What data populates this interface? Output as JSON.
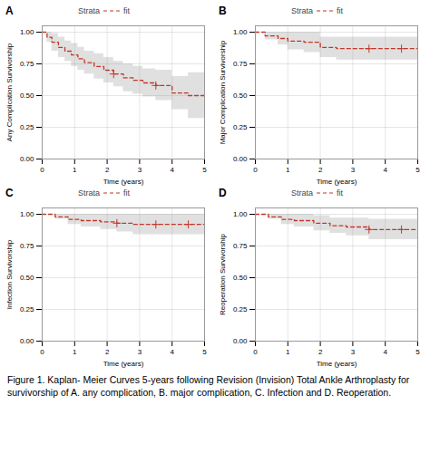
{
  "caption": "Figure 1. Kaplan- Meier Curves 5-years following Revision (Invision) Total Ankle Arthroplasty for survivorship of A. any complication, B. major complication, C. Infection and D. Reoperation.",
  "chart_data": [
    {
      "type": "line",
      "title": "A",
      "legend_title": "Strata",
      "xlabel": "Time (years)",
      "ylabel": "Any Complication Survivorship",
      "xlim": [
        0,
        5
      ],
      "ylim": [
        0.0,
        1.05
      ],
      "xticks": [
        0,
        1,
        2,
        3,
        4,
        5
      ],
      "yticks": [
        {
          "value": 0.0,
          "label": "0.00"
        },
        {
          "value": 0.25,
          "label": "0.25"
        },
        {
          "value": 0.5,
          "label": "0.50"
        },
        {
          "value": 0.75,
          "label": "0.75"
        },
        {
          "value": 1.0,
          "label": "1.00"
        }
      ],
      "grid": true,
      "x": [
        0,
        0.15,
        0.3,
        0.5,
        0.7,
        0.9,
        1.1,
        1.3,
        1.6,
        1.9,
        2.2,
        2.5,
        2.8,
        3.1,
        3.5,
        4.0,
        4.5,
        5.0
      ],
      "series": [
        {
          "name": "fit",
          "color": "#c0392b",
          "line_style": "dashed",
          "values": [
            1.0,
            0.96,
            0.92,
            0.88,
            0.85,
            0.82,
            0.79,
            0.76,
            0.73,
            0.7,
            0.67,
            0.64,
            0.62,
            0.6,
            0.58,
            0.52,
            0.5,
            0.5
          ],
          "ci_upper": [
            1.0,
            1.0,
            0.99,
            0.96,
            0.93,
            0.91,
            0.88,
            0.85,
            0.83,
            0.8,
            0.77,
            0.75,
            0.73,
            0.71,
            0.7,
            0.65,
            0.68,
            0.68
          ],
          "ci_lower": [
            1.0,
            0.92,
            0.85,
            0.8,
            0.77,
            0.73,
            0.7,
            0.67,
            0.63,
            0.6,
            0.57,
            0.53,
            0.51,
            0.49,
            0.46,
            0.39,
            0.32,
            0.32
          ],
          "censor_x": [
            2.2,
            3.5
          ],
          "censor_y": [
            0.67,
            0.58
          ]
        }
      ]
    },
    {
      "type": "line",
      "title": "B",
      "legend_title": "Strata",
      "xlabel": "Time (years)",
      "ylabel": "Major Complication Survivorship",
      "xlim": [
        0,
        5
      ],
      "ylim": [
        0.0,
        1.05
      ],
      "xticks": [
        0,
        1,
        2,
        3,
        4,
        5
      ],
      "yticks": [
        {
          "value": 0.0,
          "label": "0.00"
        },
        {
          "value": 0.25,
          "label": "0.25"
        },
        {
          "value": 0.5,
          "label": "0.50"
        },
        {
          "value": 0.75,
          "label": "0.75"
        },
        {
          "value": 1.0,
          "label": "1.00"
        }
      ],
      "grid": true,
      "x": [
        0,
        0.3,
        0.7,
        1.0,
        1.5,
        2.0,
        2.5,
        3.0,
        3.5,
        4.0,
        4.5,
        5.0
      ],
      "series": [
        {
          "name": "fit",
          "color": "#c0392b",
          "line_style": "dashed",
          "values": [
            1.0,
            0.97,
            0.95,
            0.93,
            0.92,
            0.88,
            0.87,
            0.87,
            0.87,
            0.87,
            0.87,
            0.87
          ],
          "ci_upper": [
            1.0,
            1.0,
            1.0,
            1.0,
            1.0,
            0.96,
            0.96,
            0.96,
            0.96,
            0.96,
            0.96,
            0.96
          ],
          "ci_lower": [
            1.0,
            0.94,
            0.9,
            0.86,
            0.84,
            0.8,
            0.78,
            0.78,
            0.78,
            0.78,
            0.78,
            0.78
          ],
          "censor_x": [
            3.5,
            4.5
          ],
          "censor_y": [
            0.87,
            0.87
          ]
        }
      ]
    },
    {
      "type": "line",
      "title": "C",
      "legend_title": "Strata",
      "xlabel": "Time (years)",
      "ylabel": "Infection Survivorship",
      "xlim": [
        0,
        5
      ],
      "ylim": [
        0.0,
        1.05
      ],
      "xticks": [
        0,
        1,
        2,
        3,
        4,
        5
      ],
      "yticks": [
        {
          "value": 0.0,
          "label": "0.00"
        },
        {
          "value": 0.25,
          "label": "0.25"
        },
        {
          "value": 0.5,
          "label": "0.50"
        },
        {
          "value": 0.75,
          "label": "0.75"
        },
        {
          "value": 1.0,
          "label": "1.00"
        }
      ],
      "grid": true,
      "x": [
        0,
        0.4,
        0.8,
        1.2,
        1.8,
        2.3,
        2.8,
        3.5,
        4.0,
        4.5,
        5.0
      ],
      "series": [
        {
          "name": "fit",
          "color": "#c0392b",
          "line_style": "dashed",
          "values": [
            1.0,
            0.98,
            0.96,
            0.95,
            0.94,
            0.93,
            0.92,
            0.92,
            0.92,
            0.92,
            0.92
          ],
          "ci_upper": [
            1.0,
            1.0,
            1.0,
            1.0,
            1.0,
            1.0,
            1.0,
            1.0,
            1.0,
            1.0,
            1.0
          ],
          "ci_lower": [
            1.0,
            0.96,
            0.92,
            0.9,
            0.88,
            0.86,
            0.84,
            0.84,
            0.84,
            0.84,
            0.84
          ],
          "censor_x": [
            2.3,
            3.5,
            4.5
          ],
          "censor_y": [
            0.93,
            0.92,
            0.92
          ]
        }
      ]
    },
    {
      "type": "line",
      "title": "D",
      "legend_title": "Strata",
      "xlabel": "Time (years)",
      "ylabel": "Reoperation Survivorship",
      "xlim": [
        0,
        5
      ],
      "ylim": [
        0.0,
        1.05
      ],
      "xticks": [
        0,
        1,
        2,
        3,
        4,
        5
      ],
      "yticks": [
        {
          "value": 0.0,
          "label": "0.00"
        },
        {
          "value": 0.25,
          "label": "0.25"
        },
        {
          "value": 0.5,
          "label": "0.50"
        },
        {
          "value": 0.75,
          "label": "0.75"
        },
        {
          "value": 1.0,
          "label": "1.00"
        }
      ],
      "grid": true,
      "x": [
        0,
        0.4,
        0.8,
        1.2,
        1.8,
        2.3,
        2.8,
        3.5,
        4.0,
        4.5,
        5.0
      ],
      "series": [
        {
          "name": "fit",
          "color": "#c0392b",
          "line_style": "dashed",
          "values": [
            1.0,
            0.98,
            0.96,
            0.95,
            0.93,
            0.91,
            0.9,
            0.88,
            0.88,
            0.88,
            0.88
          ],
          "ci_upper": [
            1.0,
            1.0,
            1.0,
            1.0,
            0.99,
            0.97,
            0.97,
            0.96,
            0.96,
            0.96,
            0.96
          ],
          "ci_lower": [
            1.0,
            0.96,
            0.92,
            0.9,
            0.87,
            0.85,
            0.83,
            0.8,
            0.8,
            0.8,
            0.8
          ],
          "censor_x": [
            3.5,
            4.5
          ],
          "censor_y": [
            0.88,
            0.88
          ]
        }
      ]
    }
  ]
}
